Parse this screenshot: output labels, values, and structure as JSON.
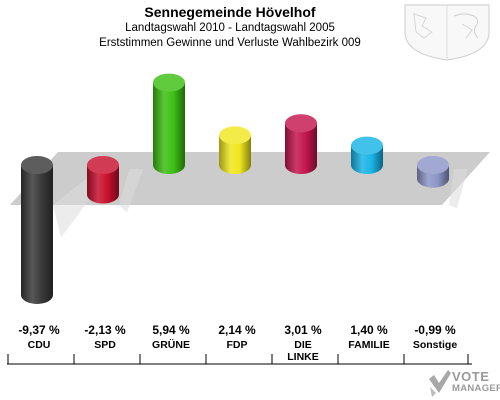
{
  "header": {
    "title": "Sennegemeinde Hövelhof",
    "subtitle1": "Landtagswahl 2010 - Landtagswahl 2005",
    "subtitle2": "Erststimmen Gewinne und Verluste Wahlbezirk 009"
  },
  "logo": {
    "line1": "VOTE",
    "line2": "MANAGER"
  },
  "chart_data": {
    "type": "bar",
    "title": "Sennegemeinde Hövelhof",
    "subtitle": "Landtagswahl 2010 - Landtagswahl 2005 / Erststimmen Gewinne und Verluste Wahlbezirk 009",
    "categories": [
      "CDU",
      "SPD",
      "GRÜNE",
      "FDP",
      "DIE LINKE",
      "FAMILIE",
      "Sonstige"
    ],
    "category_lines": [
      [
        "CDU"
      ],
      [
        "SPD"
      ],
      [
        "GRÜNE"
      ],
      [
        "FDP"
      ],
      [
        "DIE",
        "LINKE"
      ],
      [
        "FAMILIE"
      ],
      [
        "Sonstige"
      ]
    ],
    "values": [
      -9.37,
      -2.13,
      5.94,
      2.14,
      3.01,
      1.4,
      -0.99
    ],
    "value_labels": [
      "-9,37 %",
      "-2,13 %",
      "5,94 %",
      "2,14 %",
      "3,01 %",
      "1,40 %",
      "-0,99 %"
    ],
    "colors": [
      "#3a3a3a",
      "#c8102e",
      "#3cbf13",
      "#f0e61e",
      "#c4164e",
      "#19b4e6",
      "#8c96c8"
    ],
    "unit": "%",
    "baseline": 0,
    "grid": false,
    "legend": "none"
  }
}
